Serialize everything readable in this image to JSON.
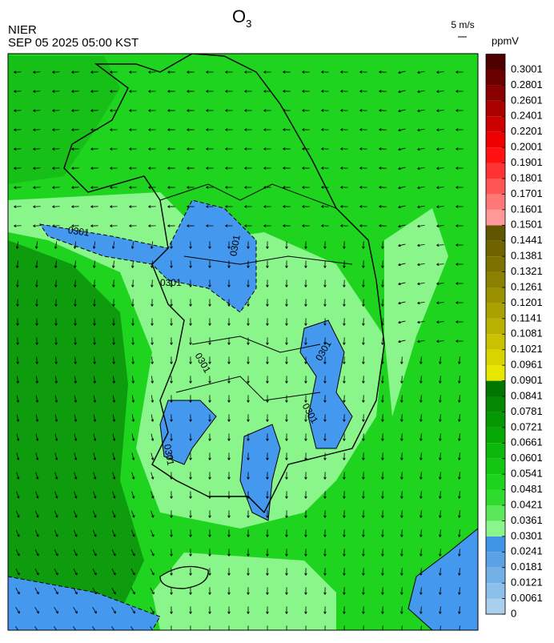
{
  "header": {
    "agency": "NIER",
    "datetime": "SEP 05 2025 05:00 KST",
    "title": {
      "base": "O",
      "sub": "3"
    },
    "wind_scale": "5 m/s",
    "unit": "ppmV"
  },
  "map": {
    "contour_labels": [
      "0301",
      "0301",
      "0301",
      "0301",
      "0301",
      "0301",
      "0301"
    ]
  },
  "colorbar": {
    "labels": [
      0,
      0.0061,
      0.0121,
      0.0181,
      0.0241,
      0.0301,
      0.0361,
      0.0421,
      0.0481,
      0.0541,
      0.0601,
      0.0661,
      0.0721,
      0.0781,
      0.0841,
      0.0901,
      0.0961,
      0.1021,
      0.1081,
      0.1141,
      0.1201,
      0.1261,
      0.1321,
      0.1381,
      0.1441,
      0.1501,
      0.1601,
      0.1701,
      0.1801,
      0.1901,
      0.2001,
      0.2201,
      0.2401,
      0.2601,
      0.2801,
      0.3001
    ],
    "colors": [
      "#a8cfee",
      "#8cbfe9",
      "#73b0e6",
      "#5aa2e3",
      "#3f94e8",
      "#8af58a",
      "#5ae85a",
      "#2edb2e",
      "#1cd41c",
      "#12c612",
      "#0cb80c",
      "#06a806",
      "#049804",
      "#038803",
      "#027602",
      "#e6e600",
      "#d8d400",
      "#c9c200",
      "#b9b100",
      "#aaa000",
      "#9b9000",
      "#8c8000",
      "#7d7100",
      "#6f6300",
      "#615500",
      "#ff9999",
      "#ff7777",
      "#ff5555",
      "#ff3333",
      "#ff1111",
      "#ee0000",
      "#cc0000",
      "#aa0000",
      "#8a0000",
      "#6a0000",
      "#4e0000"
    ]
  }
}
